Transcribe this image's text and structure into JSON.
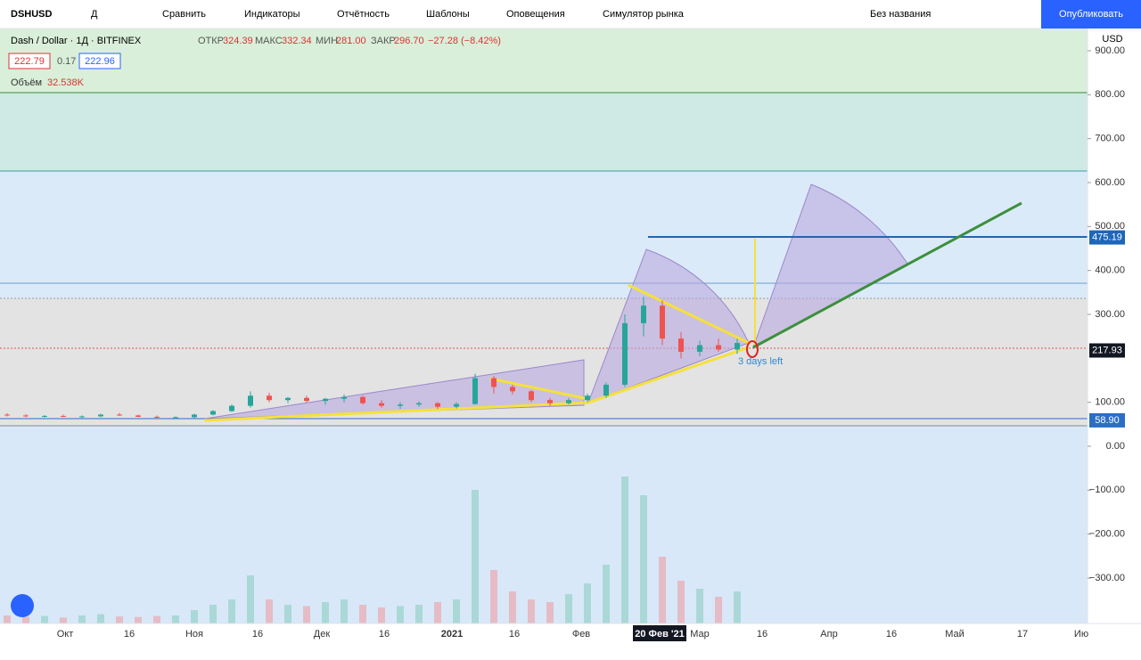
{
  "toolbar": {
    "symbol": "DSHUSD",
    "interval": "Д",
    "items": [
      "Сравнить",
      "Индикаторы",
      "Отчётность",
      "Шаблоны",
      "Оповещения",
      "Симулятор рынка"
    ],
    "layout_name": "Без названия",
    "publish": "Опубликовать"
  },
  "legend": {
    "title": "Dash / Dollar · 1Д · BITFINEX",
    "open_label": "ОТКР",
    "open": "324.39",
    "high_label": "МАКС",
    "high": "332.34",
    "low_label": "МИН",
    "low": "281.00",
    "close_label": "ЗАКР",
    "close": "296.70",
    "change": "−27.28 (−8.42%)",
    "bid": "222.79",
    "spread": "0.17",
    "ask": "222.96",
    "volume_label": "Объём",
    "volume": "32.538K"
  },
  "price_axis": {
    "currency": "USD",
    "ylim": [
      -400,
      950
    ],
    "yticks": [
      {
        "value": 900,
        "label": "900.00"
      },
      {
        "value": 800,
        "label": "800.00"
      },
      {
        "value": 700,
        "label": "700.00"
      },
      {
        "value": 600,
        "label": "600.00"
      },
      {
        "value": 500,
        "label": "500.00"
      },
      {
        "value": 400,
        "label": "400.00"
      },
      {
        "value": 300,
        "label": "300.00"
      },
      {
        "value": 100,
        "label": "100.00"
      },
      {
        "value": 0,
        "label": "0.00"
      },
      {
        "value": -100,
        "label": "−100.00"
      },
      {
        "value": -200,
        "label": "−200.00"
      },
      {
        "value": -300,
        "label": "−300.00"
      }
    ],
    "price_labels": [
      {
        "value": 475.19,
        "label": "475.19",
        "color": "#1e66b8"
      },
      {
        "value": 217.93,
        "label": "217.93",
        "color": "#131722"
      },
      {
        "value": 58.9,
        "label": "58.90",
        "color": "#2a6fc4"
      }
    ]
  },
  "time_axis": {
    "labels": [
      "Окт",
      "16",
      "Ноя",
      "16",
      "Дек",
      "16",
      "2021",
      "16",
      "Фев",
      "20 Фев '21",
      "Мар",
      "16",
      "Апр",
      "16",
      "Май",
      "17",
      "Ию"
    ]
  },
  "annotation": "3 days left",
  "candles": [
    [
      72,
      75,
      68,
      70
    ],
    [
      70,
      73,
      66,
      68
    ],
    [
      68,
      71,
      65,
      69
    ],
    [
      69,
      72,
      66,
      67
    ],
    [
      67,
      70,
      64,
      68
    ],
    [
      68,
      74,
      66,
      72
    ],
    [
      72,
      76,
      69,
      70
    ],
    [
      70,
      72,
      66,
      67
    ],
    [
      67,
      70,
      63,
      65
    ],
    [
      65,
      68,
      62,
      66
    ],
    [
      66,
      74,
      64,
      72
    ],
    [
      72,
      82,
      70,
      80
    ],
    [
      80,
      95,
      78,
      92
    ],
    [
      92,
      125,
      88,
      115
    ],
    [
      115,
      122,
      100,
      105
    ],
    [
      105,
      112,
      98,
      110
    ],
    [
      110,
      115,
      100,
      103
    ],
    [
      103,
      110,
      95,
      108
    ],
    [
      108,
      118,
      100,
      112
    ],
    [
      112,
      115,
      95,
      98
    ],
    [
      98,
      105,
      88,
      92
    ],
    [
      92,
      100,
      85,
      95
    ],
    [
      95,
      102,
      90,
      98
    ],
    [
      98,
      100,
      85,
      90
    ],
    [
      90,
      100,
      86,
      96
    ],
    [
      96,
      165,
      95,
      155
    ],
    [
      155,
      160,
      120,
      135
    ],
    [
      135,
      140,
      118,
      125
    ],
    [
      125,
      128,
      100,
      105
    ],
    [
      105,
      110,
      92,
      98
    ],
    [
      98,
      110,
      95,
      105
    ],
    [
      105,
      120,
      100,
      115
    ],
    [
      115,
      145,
      110,
      140
    ],
    [
      140,
      300,
      135,
      280
    ],
    [
      280,
      340,
      250,
      320
    ],
    [
      320,
      332,
      230,
      245
    ],
    [
      245,
      260,
      200,
      215
    ],
    [
      215,
      240,
      205,
      230
    ],
    [
      230,
      245,
      215,
      220
    ],
    [
      220,
      245,
      210,
      235
    ]
  ],
  "volumes": [
    300,
    250,
    280,
    220,
    300,
    350,
    260,
    240,
    280,
    300,
    500,
    700,
    900,
    1800,
    900,
    700,
    650,
    800,
    900,
    700,
    600,
    650,
    700,
    800,
    900,
    5000,
    2000,
    1200,
    900,
    800,
    1100,
    1500,
    2200,
    5500,
    4800,
    2500,
    1600,
    1300,
    1000,
    1200
  ]
}
